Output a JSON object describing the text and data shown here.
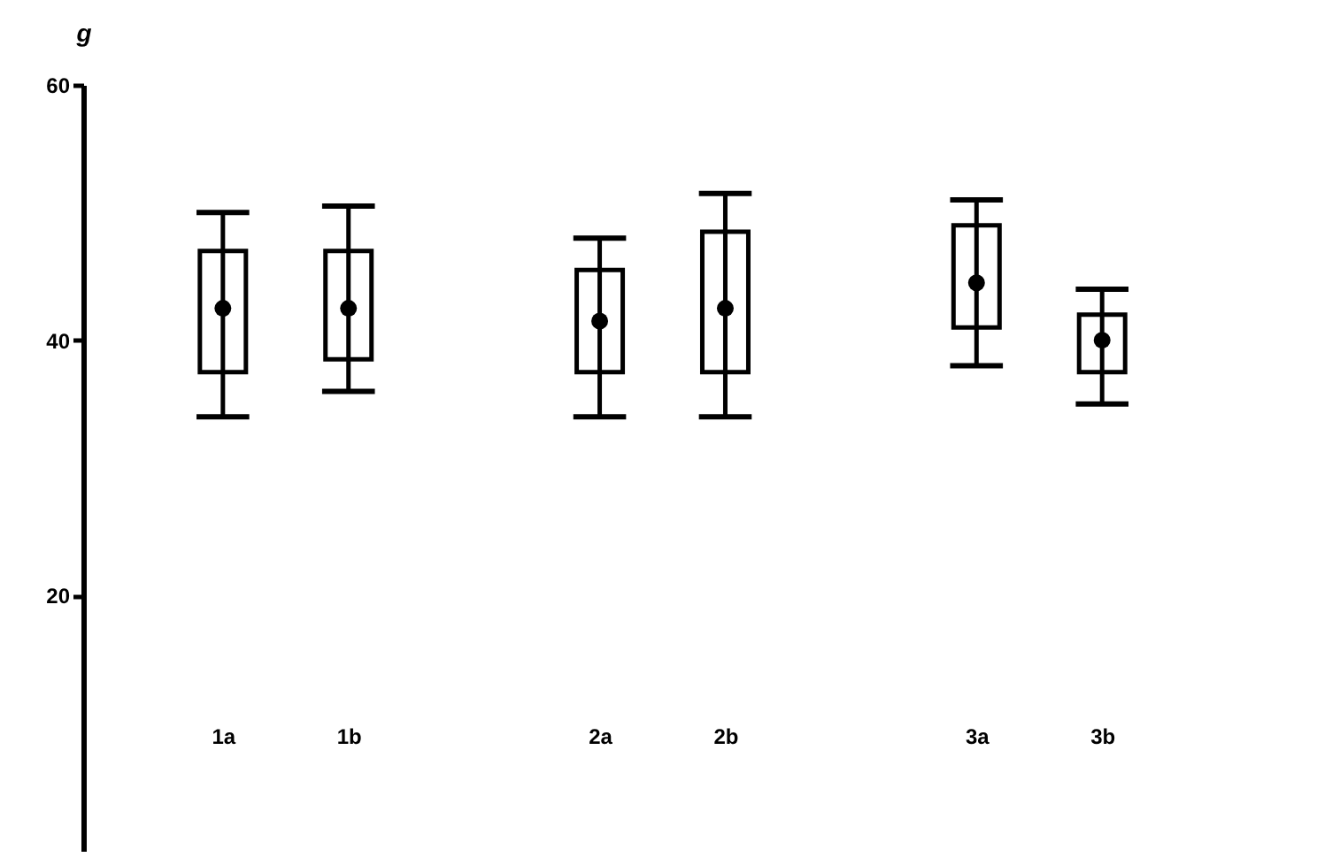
{
  "chart_data": {
    "type": "box",
    "ylabel": "g",
    "categories": [
      "1a",
      "1b",
      "2a",
      "2b",
      "3a",
      "3b"
    ],
    "boxes": [
      {
        "low": 34,
        "q1": 37.5,
        "q3": 47,
        "high": 50,
        "mean": 42.5
      },
      {
        "low": 36,
        "q1": 38.5,
        "q3": 47,
        "high": 50.5,
        "mean": 42.5
      },
      {
        "low": 34,
        "q1": 37.5,
        "q3": 45.5,
        "high": 48,
        "mean": 41.5
      },
      {
        "low": 34,
        "q1": 37.5,
        "q3": 48.5,
        "high": 51.5,
        "mean": 42.5
      },
      {
        "low": 38,
        "q1": 41,
        "q3": 49,
        "high": 51,
        "mean": 44.5
      },
      {
        "low": 35,
        "q1": 37.5,
        "q3": 42,
        "high": 44,
        "mean": 40
      }
    ],
    "color": "#000000",
    "ylim": [
      0,
      60
    ],
    "yticks": [
      20,
      40,
      60
    ],
    "grid": false
  }
}
